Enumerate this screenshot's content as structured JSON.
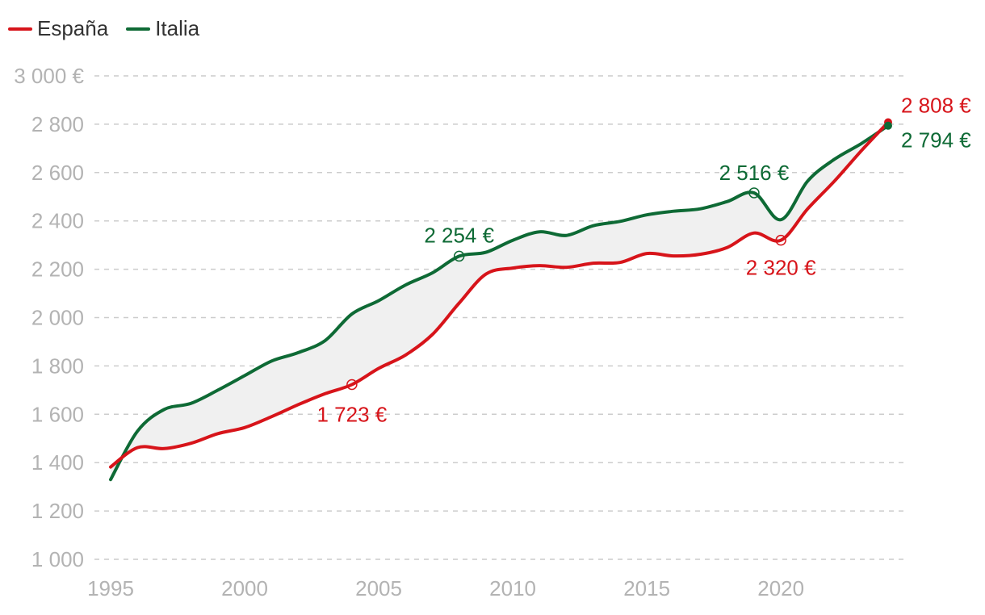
{
  "chart_data": {
    "type": "line",
    "title": "",
    "xlabel": "",
    "ylabel": "",
    "x": [
      1995,
      1996,
      1997,
      1998,
      1999,
      2000,
      2001,
      2002,
      2003,
      2004,
      2005,
      2006,
      2007,
      2008,
      2009,
      2010,
      2011,
      2012,
      2013,
      2014,
      2015,
      2016,
      2017,
      2018,
      2019,
      2020,
      2021,
      2022,
      2023,
      2024
    ],
    "xlim": [
      1995,
      2024.6
    ],
    "ylim": [
      1000,
      3000
    ],
    "x_ticks": [
      1995,
      2000,
      2005,
      2010,
      2015,
      2020
    ],
    "x_tick_labels": [
      "1995",
      "2000",
      "2005",
      "2010",
      "2015",
      "2020"
    ],
    "y_ticks": [
      1000,
      1200,
      1400,
      1600,
      1800,
      2000,
      2200,
      2400,
      2600,
      2800,
      3000
    ],
    "y_tick_labels": [
      "1 000",
      "1 200",
      "1 400",
      "1 600",
      "1 800",
      "2 000",
      "2 200",
      "2 400",
      "2 600",
      "2 800",
      "3 000 €"
    ],
    "grid": true,
    "legend_position": "top-left",
    "series": [
      {
        "name": "España",
        "color": "#d7141a",
        "values": [
          1382,
          1462,
          1458,
          1480,
          1520,
          1545,
          1590,
          1640,
          1685,
          1723,
          1790,
          1845,
          1930,
          2060,
          2180,
          2205,
          2215,
          2208,
          2225,
          2228,
          2265,
          2255,
          2262,
          2290,
          2350,
          2320,
          2450,
          2565,
          2690,
          2808
        ]
      },
      {
        "name": "Italia",
        "color": "#0e6a35",
        "values": [
          1330,
          1530,
          1620,
          1645,
          1700,
          1760,
          1820,
          1855,
          1905,
          2015,
          2070,
          2135,
          2185,
          2254,
          2270,
          2320,
          2355,
          2340,
          2380,
          2398,
          2425,
          2440,
          2450,
          2480,
          2516,
          2405,
          2565,
          2655,
          2720,
          2794
        ]
      }
    ],
    "annotations": [
      {
        "series": "España",
        "x": 2004,
        "y": 1723,
        "label": "1 723 €",
        "marker": "open-circle"
      },
      {
        "series": "Italia",
        "x": 2008,
        "y": 2254,
        "label": "2 254 €",
        "marker": "open-circle"
      },
      {
        "series": "Italia",
        "x": 2019,
        "y": 2516,
        "label": "2 516 €",
        "marker": "open-circle"
      },
      {
        "series": "España",
        "x": 2020,
        "y": 2320,
        "label": "2 320 €",
        "marker": "open-circle"
      },
      {
        "series": "España",
        "x": 2024,
        "y": 2808,
        "label": "2 808 €",
        "marker": "filled-dot"
      },
      {
        "series": "Italia",
        "x": 2024,
        "y": 2794,
        "label": "2 794 €",
        "marker": "filled-dot"
      }
    ],
    "band_fill_color": "#f0f0f0"
  },
  "legend": {
    "items": [
      {
        "label": "España",
        "color": "#d7141a"
      },
      {
        "label": "Italia",
        "color": "#0e6a35"
      }
    ]
  }
}
